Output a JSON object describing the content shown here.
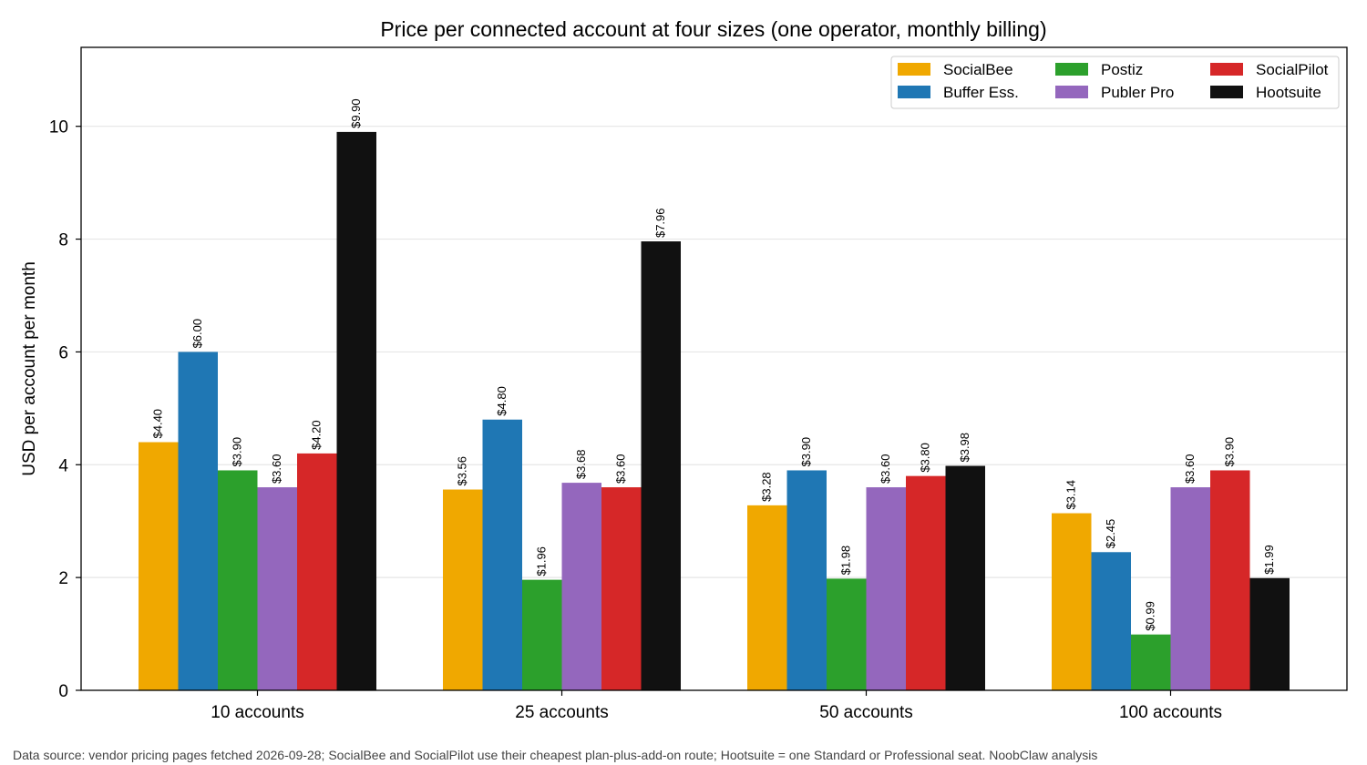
{
  "chart_data": {
    "type": "bar",
    "title": "Price per connected account at four sizes (one operator, monthly billing)",
    "xlabel": "",
    "ylabel": "USD per account per month",
    "ylim": [
      0,
      11.4
    ],
    "yticks": [
      0,
      2,
      4,
      6,
      8,
      10
    ],
    "categories": [
      "10 accounts",
      "25 accounts",
      "50 accounts",
      "100 accounts"
    ],
    "grid": "y",
    "legend_placement": "top-right",
    "series": [
      {
        "name": "SocialBee",
        "color": "#f0a800",
        "values": [
          4.4,
          3.56,
          3.28,
          3.14
        ],
        "labels": [
          "$4.40",
          "$3.56",
          "$3.28",
          "$3.14"
        ]
      },
      {
        "name": "Buffer Ess.",
        "color": "#1f77b4",
        "values": [
          6.0,
          4.8,
          3.9,
          2.45
        ],
        "labels": [
          "$6.00",
          "$4.80",
          "$3.90",
          "$2.45"
        ]
      },
      {
        "name": "Postiz",
        "color": "#2ca02c",
        "values": [
          3.9,
          1.96,
          1.98,
          0.99
        ],
        "labels": [
          "$3.90",
          "$1.96",
          "$1.98",
          "$0.99"
        ]
      },
      {
        "name": "Publer Pro",
        "color": "#9467bd",
        "values": [
          3.6,
          3.68,
          3.6,
          3.6
        ],
        "labels": [
          "$3.60",
          "$3.68",
          "$3.60",
          "$3.60"
        ]
      },
      {
        "name": "SocialPilot",
        "color": "#d62728",
        "values": [
          4.2,
          3.6,
          3.8,
          3.9
        ],
        "labels": [
          "$4.20",
          "$3.60",
          "$3.80",
          "$3.90"
        ]
      },
      {
        "name": "Hootsuite",
        "color": "#111111",
        "values": [
          9.9,
          7.96,
          3.98,
          1.99
        ],
        "labels": [
          "$9.90",
          "$7.96",
          "$3.98",
          "$1.99"
        ]
      }
    ]
  },
  "footnote": "Data source: vendor pricing pages fetched 2026-09-28; SocialBee and SocialPilot use their cheapest plan-plus-add-on route; Hootsuite = one Standard or Professional seat. NoobClaw analysis"
}
